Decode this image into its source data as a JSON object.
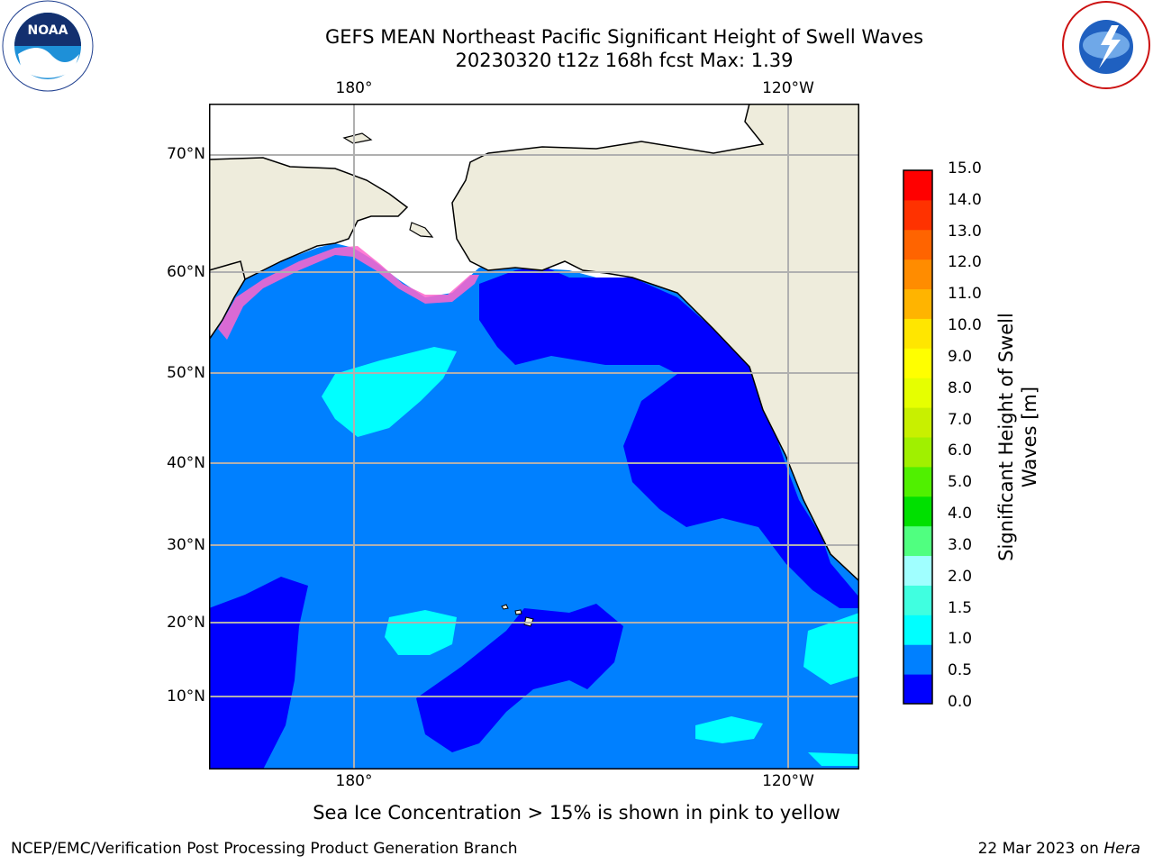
{
  "header": {
    "title": "GEFS MEAN Northeast Pacific Significant Height of Swell Waves",
    "subtitle": "20230320 t12z 168h fcst   Max: 1.39"
  },
  "map": {
    "lat_labels": [
      "70°N",
      "60°N",
      "50°N",
      "40°N",
      "30°N",
      "20°N",
      "10°N"
    ],
    "lat_values": [
      70,
      60,
      50,
      40,
      30,
      20,
      10
    ],
    "lon_labels_top": [
      "180°",
      "120°W"
    ],
    "lon_labels_bottom": [
      "180°",
      "120°W"
    ],
    "colors": {
      "land": "#eeecdc",
      "ice_pink": "#ff66cc",
      "ice_yellow": "#ffd21e",
      "grid": "#b0b0b0"
    }
  },
  "colorbar": {
    "label": "Significant Height of Swell Waves [m]",
    "ticks": [
      "15.0",
      "14.0",
      "13.0",
      "12.0",
      "11.0",
      "10.0",
      "9.0",
      "8.0",
      "7.0",
      "6.0",
      "5.0",
      "4.0",
      "3.0",
      "2.0",
      "1.5",
      "1.0",
      "0.5",
      "0.0"
    ],
    "colors": [
      "#0000ff",
      "#0080ff",
      "#00ffff",
      "#40ffe0",
      "#a0ffff",
      "#50ff80",
      "#00e000",
      "#50f000",
      "#a0f000",
      "#c8f000",
      "#e6ff00",
      "#ffff00",
      "#ffe600",
      "#ffb400",
      "#ff8c00",
      "#ff6400",
      "#ff3200",
      "#ff0000"
    ]
  },
  "caption": "Sea Ice Concentration > 15% is shown in pink to yellow",
  "footer": {
    "left": "NCEP/EMC/Verification Post Processing Product Generation Branch",
    "right_prefix": "22 Mar 2023 on ",
    "right_host": "Hera"
  },
  "logos": {
    "noaa": "NOAA",
    "nws": "NATIONAL WEATHER SERVICE"
  }
}
